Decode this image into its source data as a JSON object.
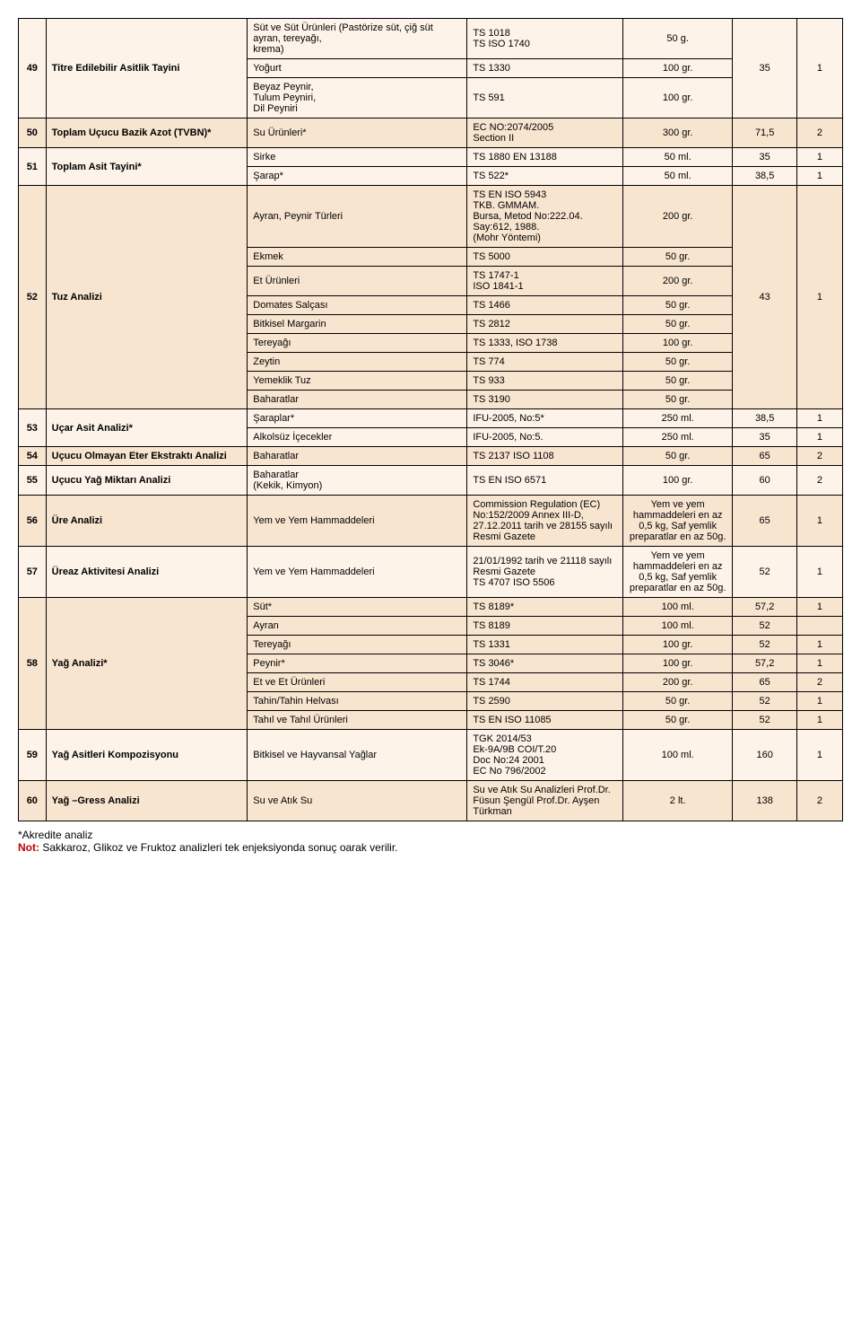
{
  "rows": [
    {
      "band": "light",
      "cells": [
        "49",
        "Titre Edilebilir Asitlik Tayini",
        "Süt ve Süt Ürünleri (Pastörize süt, çiğ süt ayran, tereyağı,\nkrema)",
        "TS 1018\nTS ISO 1740",
        "50 g.",
        "35",
        "1"
      ],
      "spans": [
        3,
        3,
        1,
        1,
        1,
        3,
        3
      ]
    },
    {
      "band": "light",
      "cells": [
        "Yoğurt",
        "TS 1330",
        "100 gr."
      ],
      "spans": [
        1,
        1,
        1
      ]
    },
    {
      "band": "light",
      "cells": [
        "Beyaz Peynir,\nTulum Peyniri,\nDil Peyniri",
        "TS 591",
        "100 gr."
      ],
      "spans": [
        1,
        1,
        1
      ]
    },
    {
      "band": "dark",
      "cells": [
        "50",
        "Toplam Uçucu Bazik Azot (TVBN)*",
        "Su Ürünleri*",
        "EC NO:2074/2005\nSection II",
        "300 gr.",
        "71,5",
        "2"
      ],
      "spans": [
        1,
        1,
        1,
        1,
        1,
        1,
        1
      ]
    },
    {
      "band": "light",
      "cells": [
        "51",
        "Toplam Asit Tayini*",
        "Sirke",
        "TS 1880 EN 13188",
        "50 ml.",
        "35",
        "1"
      ],
      "spans": [
        2,
        2,
        1,
        1,
        1,
        1,
        1
      ]
    },
    {
      "band": "light",
      "cells": [
        "Şarap*",
        "TS 522*",
        "50 ml.",
        "38,5",
        "1"
      ],
      "spans": [
        1,
        1,
        1,
        1,
        1
      ]
    },
    {
      "band": "dark",
      "cells": [
        "52",
        "Tuz Analizi",
        "Ayran, Peynir Türleri",
        "TS EN ISO 5943\nTKB. GMMAM.\nBursa, Metod No:222.04.\nSay:612, 1988.\n(Mohr Yöntemi)",
        "200 gr.",
        "43",
        "1"
      ],
      "spans": [
        9,
        9,
        1,
        1,
        1,
        9,
        9
      ]
    },
    {
      "band": "dark",
      "cells": [
        "Ekmek",
        "TS 5000",
        "50 gr."
      ],
      "spans": [
        1,
        1,
        1
      ]
    },
    {
      "band": "dark",
      "cells": [
        "Et Ürünleri",
        "TS 1747-1\nISO 1841-1",
        "200 gr."
      ],
      "spans": [
        1,
        1,
        1
      ]
    },
    {
      "band": "dark",
      "cells": [
        "Domates Salçası",
        "TS 1466",
        "50 gr."
      ],
      "spans": [
        1,
        1,
        1
      ]
    },
    {
      "band": "dark",
      "cells": [
        "Bitkisel Margarin",
        "TS 2812",
        "50 gr."
      ],
      "spans": [
        1,
        1,
        1
      ]
    },
    {
      "band": "dark",
      "cells": [
        "Tereyağı",
        "TS 1333, ISO 1738",
        "100 gr."
      ],
      "spans": [
        1,
        1,
        1
      ]
    },
    {
      "band": "dark",
      "cells": [
        "Zeytin",
        "TS 774",
        "50 gr."
      ],
      "spans": [
        1,
        1,
        1
      ]
    },
    {
      "band": "dark",
      "cells": [
        "Yemeklik Tuz",
        "TS 933",
        "50 gr."
      ],
      "spans": [
        1,
        1,
        1
      ]
    },
    {
      "band": "dark",
      "cells": [
        "Baharatlar",
        "TS 3190",
        "50 gr."
      ],
      "spans": [
        1,
        1,
        1
      ]
    },
    {
      "band": "light",
      "cells": [
        "53",
        "Uçar Asit Analizi*",
        "Şaraplar*",
        "IFU-2005, No:5*",
        "250 ml.",
        "38,5",
        "1"
      ],
      "spans": [
        2,
        2,
        1,
        1,
        1,
        1,
        1
      ]
    },
    {
      "band": "light",
      "cells": [
        "Alkolsüz İçecekler",
        "IFU-2005, No:5.",
        "250 ml.",
        "35",
        "1"
      ],
      "spans": [
        1,
        1,
        1,
        1,
        1
      ]
    },
    {
      "band": "dark",
      "cells": [
        "54",
        "Uçucu Olmayan Eter Ekstraktı Analizi",
        "Baharatlar",
        "TS 2137 ISO 1108",
        "50 gr.",
        "65",
        "2"
      ],
      "spans": [
        1,
        1,
        1,
        1,
        1,
        1,
        1
      ]
    },
    {
      "band": "light",
      "cells": [
        "55",
        "Uçucu Yağ Miktarı Analizi",
        "Baharatlar\n(Kekik, Kimyon)",
        "TS EN ISO 6571",
        "100 gr.",
        "60",
        "2"
      ],
      "spans": [
        1,
        1,
        1,
        1,
        1,
        1,
        1
      ]
    },
    {
      "band": "dark",
      "cells": [
        "56",
        "Üre Analizi",
        "Yem ve Yem Hammaddeleri",
        "Commission Regulation (EC) No:152/2009 Annex III-D, 27.12.2011 tarih ve 28155 sayılı Resmi Gazete",
        "Yem ve yem hammaddeleri en az 0,5 kg, Saf yemlik preparatlar en az 50g.",
        "65",
        "1"
      ],
      "spans": [
        1,
        1,
        1,
        1,
        1,
        1,
        1
      ]
    },
    {
      "band": "light",
      "cells": [
        "57",
        "Üreaz Aktivitesi Analizi",
        "Yem ve Yem Hammaddeleri",
        "21/01/1992 tarih ve 21118 sayılı Resmi Gazete\nTS 4707 ISO 5506",
        "Yem ve yem hammaddeleri en az 0,5 kg, Saf yemlik preparatlar en az 50g.",
        "52",
        "1"
      ],
      "spans": [
        1,
        1,
        1,
        1,
        1,
        1,
        1
      ]
    },
    {
      "band": "dark",
      "cells": [
        "58",
        "Yağ Analizi*",
        "Süt*",
        "TS 8189*",
        "100 ml.",
        "57,2",
        "1"
      ],
      "spans": [
        7,
        7,
        1,
        1,
        1,
        1,
        1
      ]
    },
    {
      "band": "dark",
      "cells": [
        "Ayran",
        "TS 8189",
        "100 ml.",
        "52",
        ""
      ],
      "spans": [
        1,
        1,
        1,
        1,
        1
      ]
    },
    {
      "band": "dark",
      "cells": [
        "Tereyağı",
        "TS 1331",
        "100 gr.",
        "52",
        "1"
      ],
      "spans": [
        1,
        1,
        1,
        1,
        1
      ]
    },
    {
      "band": "dark",
      "cells": [
        "Peynir*",
        "TS 3046*",
        "100 gr.",
        "57,2",
        "1"
      ],
      "spans": [
        1,
        1,
        1,
        1,
        1
      ]
    },
    {
      "band": "dark",
      "cells": [
        "Et ve Et Ürünleri",
        "TS 1744",
        "200 gr.",
        "65",
        "2"
      ],
      "spans": [
        1,
        1,
        1,
        1,
        1
      ]
    },
    {
      "band": "dark",
      "cells": [
        "Tahin/Tahin Helvası",
        "TS 2590",
        "50 gr.",
        "52",
        "1"
      ],
      "spans": [
        1,
        1,
        1,
        1,
        1
      ]
    },
    {
      "band": "dark",
      "cells": [
        "Tahıl ve Tahıl Ürünleri",
        "TS EN ISO 11085",
        "50 gr.",
        "52",
        "1"
      ],
      "spans": [
        1,
        1,
        1,
        1,
        1
      ]
    },
    {
      "band": "light",
      "cells": [
        "59",
        "Yağ Asitleri Kompozisyonu",
        "Bitkisel ve Hayvansal Yağlar",
        "TGK 2014/53\nEk-9A/9B COI/T.20\nDoc No:24 2001\nEC No 796/2002",
        "100 ml.",
        "160",
        "1"
      ],
      "spans": [
        1,
        1,
        1,
        1,
        1,
        1,
        1
      ]
    },
    {
      "band": "dark",
      "cells": [
        "60",
        "Yağ –Gress Analizi",
        "Su ve Atık Su",
        "Su ve Atık Su Analizleri Prof.Dr. Füsun Şengül Prof.Dr. Ayşen Türkman",
        "2 lt.",
        "138",
        "2"
      ],
      "spans": [
        1,
        1,
        1,
        1,
        1,
        1,
        1
      ]
    }
  ],
  "footnotes": {
    "akredite": "*Akredite analiz",
    "not_label": "Not:",
    "not_text": " Sakkaroz, Glikoz ve Fruktoz analizleri tek enjeksiyonda sonuç oarak verilir."
  },
  "colors": {
    "band_light": "#fdf3e9",
    "band_dark": "#f8e5d0"
  }
}
